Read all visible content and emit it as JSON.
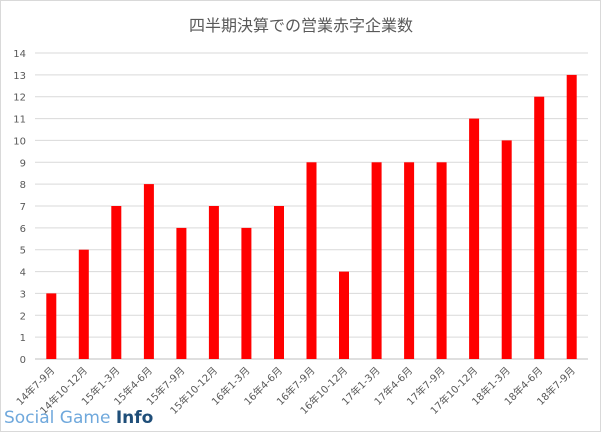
{
  "chart_data": {
    "type": "bar",
    "title": "四半期決算での営業赤字企業数",
    "xlabel": "",
    "ylabel": "",
    "ylim": [
      0,
      14
    ],
    "yticks": [
      0,
      1,
      2,
      3,
      4,
      5,
      6,
      7,
      8,
      9,
      10,
      11,
      12,
      13,
      14
    ],
    "grid": true,
    "legend": "none",
    "bar_color": "#ff0000",
    "categories": [
      "14年7-9月",
      "14年10-12月",
      "15年1-3月",
      "15年4-6月",
      "15年7-9月",
      "15年10-12月",
      "16年1-3月",
      "16年4-6月",
      "16年7-9月",
      "16年10-12月",
      "17年1-3月",
      "17年4-6月",
      "17年7-9月",
      "17年10-12月",
      "18年1-3月",
      "18年4-6月",
      "18年7-9月"
    ],
    "values": [
      3,
      5,
      7,
      8,
      6,
      7,
      6,
      7,
      9,
      4,
      9,
      9,
      9,
      11,
      10,
      12,
      13
    ]
  },
  "watermark": {
    "part1": "Social Game ",
    "part2": "Info"
  }
}
